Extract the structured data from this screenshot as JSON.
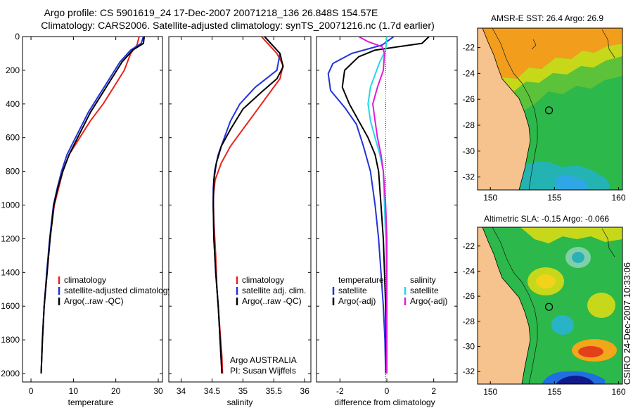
{
  "header": {
    "title_line1": "Argo profile: CS 5901619_24 17-Dec-2007 20071218_136 26.848S 154.57E",
    "title_line2": "Climatology: CARS2006. Satellite-adjusted climatology: synTS_20071216.nc (1.7d earlier)"
  },
  "footer": {
    "stamp": "CSIRO 24-Dec-2007 10:33:06",
    "credit_line1": "Argo AUSTRALIA",
    "credit_line2": "PI: Susan Wijffels"
  },
  "colors": {
    "climatology": "#e8231b",
    "satellite": "#2233d9",
    "argo": "#000000",
    "salinity_satellite": "#25d9e6",
    "salinity_argo": "#e01ad9",
    "land": "#f6c28e"
  },
  "chart_data": [
    {
      "type": "line",
      "id": "temperature",
      "xlabel": "temperature",
      "ylabel": "",
      "xlim": [
        -2,
        31
      ],
      "ylim": [
        2050,
        0
      ],
      "xticks": [
        0,
        10,
        20,
        30
      ],
      "yticks": [
        0,
        200,
        400,
        600,
        800,
        1000,
        1200,
        1400,
        1600,
        1800,
        2000
      ],
      "legend": [
        "climatology",
        "satellite-adjusted climatology",
        "Argo(..raw -QC)"
      ],
      "series": [
        {
          "name": "climatology",
          "color": "#e8231b",
          "points": [
            [
              25.5,
              0
            ],
            [
              25,
              50
            ],
            [
              23.5,
              100
            ],
            [
              22,
              200
            ],
            [
              19.5,
              300
            ],
            [
              17,
              400
            ],
            [
              14,
              500
            ],
            [
              11.5,
              600
            ],
            [
              9,
              700
            ],
            [
              7.5,
              800
            ],
            [
              6.5,
              900
            ],
            [
              5.5,
              1000
            ],
            [
              4.5,
              1200
            ],
            [
              3.8,
              1400
            ],
            [
              3.1,
              1600
            ],
            [
              2.7,
              1800
            ],
            [
              2.4,
              2000
            ]
          ]
        },
        {
          "name": "satellite-adjusted climatology",
          "color": "#2233d9",
          "points": [
            [
              26.5,
              0
            ],
            [
              26,
              40
            ],
            [
              23.5,
              80
            ],
            [
              21,
              150
            ],
            [
              18.5,
              250
            ],
            [
              16,
              350
            ],
            [
              13.5,
              450
            ],
            [
              10.5,
              600
            ],
            [
              8.5,
              700
            ],
            [
              7.2,
              800
            ],
            [
              6.2,
              900
            ],
            [
              5.3,
              1000
            ],
            [
              4.4,
              1200
            ],
            [
              3.7,
              1400
            ],
            [
              3.1,
              1600
            ],
            [
              2.7,
              1800
            ],
            [
              2.4,
              2000
            ]
          ]
        },
        {
          "name": "Argo(..raw -QC)",
          "color": "#000000",
          "points": [
            [
              26.7,
              0
            ],
            [
              26.5,
              40
            ],
            [
              24,
              80
            ],
            [
              21.5,
              150
            ],
            [
              19,
              250
            ],
            [
              16.5,
              350
            ],
            [
              14,
              450
            ],
            [
              11,
              600
            ],
            [
              9,
              700
            ],
            [
              7.5,
              800
            ],
            [
              6.3,
              900
            ],
            [
              5.4,
              1000
            ],
            [
              4.5,
              1200
            ],
            [
              3.8,
              1400
            ],
            [
              3.1,
              1600
            ],
            [
              2.7,
              1800
            ],
            [
              2.4,
              2000
            ]
          ]
        }
      ]
    },
    {
      "type": "line",
      "id": "salinity",
      "xlabel": "salinity",
      "ylabel": "",
      "xlim": [
        33.8,
        36.1
      ],
      "ylim": [
        2050,
        0
      ],
      "xticks": [
        34,
        34.5,
        35,
        35.5,
        36
      ],
      "legend": [
        "climatology",
        "satellite adj. clim.",
        "Argo(..raw -QC)"
      ],
      "series": [
        {
          "name": "climatology",
          "color": "#e8231b",
          "points": [
            [
              35.3,
              0
            ],
            [
              35.55,
              100
            ],
            [
              35.65,
              170
            ],
            [
              35.6,
              250
            ],
            [
              35.4,
              350
            ],
            [
              35.2,
              450
            ],
            [
              35.0,
              550
            ],
            [
              34.8,
              650
            ],
            [
              34.65,
              750
            ],
            [
              34.55,
              850
            ],
            [
              34.52,
              950
            ],
            [
              34.53,
              1100
            ],
            [
              34.56,
              1300
            ],
            [
              34.58,
              1500
            ],
            [
              34.62,
              1700
            ],
            [
              34.66,
              1900
            ],
            [
              34.67,
              2000
            ]
          ]
        },
        {
          "name": "satellite adj. clim.",
          "color": "#2233d9",
          "points": [
            [
              35.35,
              0
            ],
            [
              35.6,
              100
            ],
            [
              35.55,
              200
            ],
            [
              35.2,
              300
            ],
            [
              34.95,
              400
            ],
            [
              34.8,
              500
            ],
            [
              34.7,
              600
            ],
            [
              34.6,
              700
            ],
            [
              34.54,
              800
            ],
            [
              34.52,
              900
            ],
            [
              34.52,
              1000
            ],
            [
              34.53,
              1200
            ],
            [
              34.56,
              1400
            ],
            [
              34.6,
              1600
            ],
            [
              34.63,
              1800
            ],
            [
              34.66,
              2000
            ]
          ]
        },
        {
          "name": "Argo(..raw -QC)",
          "color": "#000000",
          "points": [
            [
              35.35,
              0
            ],
            [
              35.6,
              100
            ],
            [
              35.65,
              180
            ],
            [
              35.55,
              250
            ],
            [
              35.3,
              330
            ],
            [
              35.0,
              430
            ],
            [
              34.8,
              550
            ],
            [
              34.65,
              650
            ],
            [
              34.57,
              750
            ],
            [
              34.53,
              850
            ],
            [
              34.52,
              1000
            ],
            [
              34.53,
              1200
            ],
            [
              34.56,
              1400
            ],
            [
              34.6,
              1600
            ],
            [
              34.63,
              1800
            ],
            [
              34.66,
              2000
            ]
          ]
        }
      ],
      "annotations": [
        "Argo AUSTRALIA",
        "PI: Susan Wijffels"
      ]
    },
    {
      "type": "line",
      "id": "difference",
      "xlabel": "difference from climatology",
      "ylabel": "",
      "xlim": [
        -3,
        3
      ],
      "ylim": [
        2050,
        0
      ],
      "xticks": [
        -2,
        0,
        2
      ],
      "legend_left_title": "temperature",
      "legend_right_title": "salinity",
      "legend": [
        "satellite",
        "Argo(-adj)",
        "satellite",
        "Argo(-adj)"
      ],
      "series": [
        {
          "name": "satellite",
          "group": "temperature",
          "color": "#2233d9",
          "points": [
            [
              0.3,
              0
            ],
            [
              -0.2,
              50
            ],
            [
              -1.5,
              100
            ],
            [
              -2.3,
              160
            ],
            [
              -2.5,
              220
            ],
            [
              -2.4,
              320
            ],
            [
              -1.8,
              420
            ],
            [
              -1.3,
              520
            ],
            [
              -1.0,
              650
            ],
            [
              -0.7,
              800
            ],
            [
              -0.5,
              1000
            ],
            [
              -0.35,
              1200
            ],
            [
              -0.25,
              1400
            ],
            [
              -0.15,
              1600
            ],
            [
              -0.08,
              1800
            ],
            [
              -0.05,
              2000
            ]
          ]
        },
        {
          "name": "Argo(-adj)",
          "group": "temperature",
          "color": "#000000",
          "points": [
            [
              1.8,
              0
            ],
            [
              1.5,
              40
            ],
            [
              0.5,
              60
            ],
            [
              -0.5,
              80
            ],
            [
              -1.2,
              120
            ],
            [
              -1.8,
              200
            ],
            [
              -1.9,
              300
            ],
            [
              -1.6,
              400
            ],
            [
              -1.2,
              500
            ],
            [
              -0.8,
              600
            ],
            [
              -0.5,
              700
            ],
            [
              -0.35,
              800
            ],
            [
              -0.25,
              1000
            ],
            [
              -0.15,
              1200
            ],
            [
              -0.1,
              1400
            ],
            [
              -0.05,
              1600
            ],
            [
              -0.02,
              1800
            ],
            [
              0,
              2000
            ]
          ]
        },
        {
          "name": "satellite",
          "group": "salinity",
          "color": "#25d9e6",
          "points": [
            [
              0,
              0
            ],
            [
              -0.05,
              80
            ],
            [
              -0.3,
              150
            ],
            [
              -0.7,
              300
            ],
            [
              -0.8,
              400
            ],
            [
              -0.7,
              500
            ],
            [
              -0.5,
              600
            ],
            [
              -0.3,
              700
            ],
            [
              -0.15,
              800
            ],
            [
              -0.1,
              1000
            ],
            [
              -0.05,
              1200
            ],
            [
              0,
              1500
            ],
            [
              0,
              2000
            ]
          ]
        },
        {
          "name": "Argo(-adj)",
          "group": "salinity",
          "color": "#e01ad9",
          "points": [
            [
              -1.2,
              0
            ],
            [
              -0.8,
              30
            ],
            [
              -0.2,
              60
            ],
            [
              -0.1,
              100
            ],
            [
              -0.15,
              200
            ],
            [
              -0.4,
              300
            ],
            [
              -0.6,
              400
            ],
            [
              -0.5,
              500
            ],
            [
              -0.4,
              600
            ],
            [
              -0.25,
              700
            ],
            [
              -0.15,
              800
            ],
            [
              -0.05,
              1000
            ],
            [
              0,
              1200
            ],
            [
              0,
              2000
            ]
          ]
        }
      ]
    },
    {
      "type": "heatmap",
      "id": "sst-map",
      "title": "AMSR-E SST: 26.4 Argo: 26.9",
      "xlim": [
        149,
        160.3
      ],
      "ylim": [
        -33,
        -20.5
      ],
      "xticks": [
        150,
        155,
        160
      ],
      "yticks": [
        -22,
        -24,
        -26,
        -28,
        -30,
        -32
      ],
      "float_position": [
        154.57,
        -26.848
      ]
    },
    {
      "type": "heatmap",
      "id": "sla-map",
      "title": "Altimetric SLA: -0.15 Argo: -0.066",
      "xlim": [
        149,
        160.3
      ],
      "ylim": [
        -33,
        -20.5
      ],
      "xticks": [
        150,
        155,
        160
      ],
      "yticks": [
        -22,
        -24,
        -26,
        -28,
        -30,
        -32
      ],
      "float_position": [
        154.57,
        -26.848
      ]
    }
  ]
}
